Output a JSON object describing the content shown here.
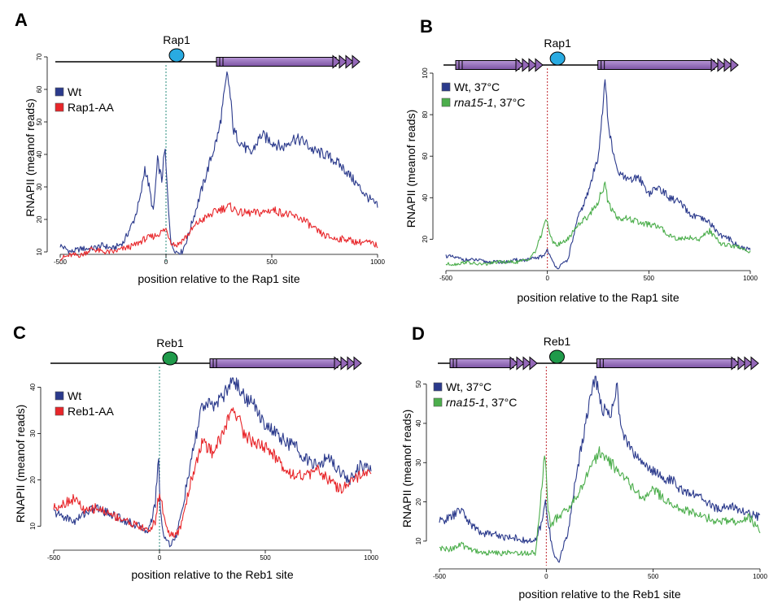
{
  "colors": {
    "wt": "#2b3a8c",
    "mutant_red": "#e8262a",
    "mutant_green": "#4cae4c",
    "gene_fill": "#9468b8",
    "rap1_circle": "#29abe2",
    "reb1_circle": "#1f9a4a",
    "vline_teal": "#2a8c7c",
    "vline_red": "#c0262d"
  },
  "chart_data": [
    {
      "panel": "A",
      "type": "line",
      "factor": "Rap1",
      "factor_color": "rap1_circle",
      "vline_color": "vline_teal",
      "genes": "right",
      "xlabel": "position relative to the Rap1 site",
      "ylabel": "RNAPII (meanof reads)",
      "xlim": [
        -500,
        1000
      ],
      "xticks": [
        "-500",
        "0",
        "500",
        "1000"
      ],
      "ylim": [
        8,
        70
      ],
      "yticks": [
        "10",
        "20",
        "30",
        "40",
        "50",
        "60",
        "70"
      ],
      "series": [
        {
          "name": "Wt",
          "color": "wt",
          "x": [
            -500,
            -450,
            -400,
            -350,
            -300,
            -250,
            -200,
            -150,
            -120,
            -100,
            -80,
            -60,
            -40,
            -20,
            -5,
            0,
            10,
            25,
            50,
            75,
            100,
            150,
            200,
            250,
            275,
            290,
            300,
            320,
            350,
            400,
            450,
            500,
            550,
            600,
            650,
            700,
            750,
            800,
            850,
            900,
            950,
            1000
          ],
          "y": [
            12,
            10,
            11,
            11,
            12,
            11,
            13,
            20,
            27,
            36,
            30,
            22,
            38,
            32,
            42,
            36,
            25,
            12,
            10,
            10,
            14,
            25,
            36,
            47,
            58,
            65,
            60,
            47,
            44,
            40,
            46,
            44,
            42,
            45,
            44,
            41,
            40,
            38,
            35,
            31,
            27,
            24
          ]
        },
        {
          "name": "Rap1-AA",
          "color": "mutant_red",
          "x": [
            -500,
            -450,
            -400,
            -350,
            -300,
            -250,
            -200,
            -150,
            -100,
            -50,
            0,
            25,
            50,
            100,
            150,
            200,
            250,
            300,
            350,
            400,
            450,
            500,
            550,
            600,
            650,
            700,
            750,
            800,
            850,
            900,
            950,
            1000
          ],
          "y": [
            8,
            9,
            9,
            11,
            10,
            10,
            11,
            12,
            14,
            15,
            17,
            13,
            12,
            15,
            19,
            21,
            23,
            24,
            22,
            22,
            22,
            23,
            22,
            21,
            20,
            17,
            15,
            14,
            14,
            13,
            13,
            12
          ]
        }
      ]
    },
    {
      "panel": "B",
      "type": "line",
      "factor": "Rap1",
      "factor_color": "rap1_circle",
      "vline_color": "vline_red",
      "genes": "both",
      "xlabel": "position relative to the Rap1 site",
      "ylabel": "RNAPII (meanof reads)",
      "xlim": [
        -500,
        1000
      ],
      "xticks": [
        "-500",
        "0",
        "500",
        "1000"
      ],
      "ylim": [
        8,
        100
      ],
      "yticks": [
        "20",
        "40",
        "60",
        "80",
        "100"
      ],
      "series": [
        {
          "name": "Wt, 37°C",
          "color": "wt",
          "x": [
            -500,
            -450,
            -400,
            -350,
            -300,
            -250,
            -200,
            -150,
            -100,
            -50,
            -20,
            0,
            20,
            50,
            100,
            150,
            200,
            250,
            270,
            285,
            300,
            330,
            350,
            400,
            450,
            500,
            550,
            600,
            650,
            700,
            750,
            800,
            850,
            900,
            950,
            1000
          ],
          "y": [
            12,
            11,
            10,
            10,
            9,
            9,
            9,
            10,
            10,
            11,
            12,
            15,
            10,
            6,
            10,
            30,
            42,
            60,
            80,
            97,
            75,
            58,
            52,
            48,
            50,
            42,
            45,
            40,
            38,
            32,
            30,
            28,
            22,
            20,
            16,
            15
          ]
        },
        {
          "name": "rna15-1, 37°C",
          "color": "mutant_green",
          "x": [
            -500,
            -450,
            -400,
            -350,
            -300,
            -250,
            -200,
            -150,
            -100,
            -60,
            -30,
            -10,
            0,
            20,
            50,
            100,
            150,
            200,
            250,
            270,
            285,
            300,
            350,
            400,
            450,
            500,
            550,
            600,
            650,
            700,
            750,
            800,
            850,
            900,
            950,
            1000
          ],
          "y": [
            8,
            8,
            9,
            8,
            8,
            9,
            9,
            9,
            10,
            14,
            22,
            30,
            27,
            20,
            17,
            20,
            27,
            31,
            38,
            44,
            46,
            37,
            30,
            30,
            28,
            27,
            26,
            22,
            20,
            21,
            20,
            24,
            18,
            17,
            16,
            14
          ]
        }
      ]
    },
    {
      "panel": "C",
      "type": "line",
      "factor": "Reb1",
      "factor_color": "reb1_circle",
      "vline_color": "vline_teal",
      "genes": "right",
      "xlabel": "position relative to the Reb1 site",
      "ylabel": "RNAPII (meanof reads)",
      "xlim": [
        -500,
        1000
      ],
      "xticks": [
        "-500",
        "0",
        "500",
        "1000"
      ],
      "ylim": [
        5,
        42
      ],
      "yticks": [
        "10",
        "20",
        "30",
        "40"
      ],
      "series": [
        {
          "name": "Wt",
          "color": "wt",
          "x": [
            -500,
            -450,
            -400,
            -350,
            -300,
            -250,
            -200,
            -150,
            -100,
            -50,
            -20,
            -5,
            5,
            20,
            50,
            80,
            100,
            150,
            200,
            250,
            300,
            350,
            400,
            450,
            500,
            550,
            600,
            650,
            700,
            750,
            800,
            850,
            900,
            950,
            1000
          ],
          "y": [
            13,
            12,
            11,
            13,
            14,
            13,
            12,
            11,
            10,
            9,
            15,
            25,
            13,
            8,
            6,
            8,
            12,
            24,
            36,
            36,
            38,
            42,
            38,
            36,
            32,
            30,
            28,
            27,
            24,
            23,
            25,
            22,
            20,
            23,
            22
          ]
        },
        {
          "name": "Reb1-AA",
          "color": "mutant_red",
          "x": [
            -500,
            -450,
            -400,
            -350,
            -300,
            -250,
            -200,
            -150,
            -100,
            -50,
            -20,
            -5,
            5,
            20,
            50,
            80,
            100,
            150,
            200,
            250,
            300,
            350,
            400,
            450,
            500,
            550,
            600,
            650,
            700,
            750,
            800,
            850,
            900,
            950,
            1000
          ],
          "y": [
            14,
            15,
            16,
            13,
            14,
            13,
            12,
            11,
            10,
            9,
            11,
            16,
            17,
            12,
            8,
            8,
            10,
            20,
            28,
            26,
            30,
            36,
            30,
            28,
            27,
            25,
            22,
            21,
            21,
            22,
            20,
            18,
            19,
            21,
            21
          ]
        }
      ]
    },
    {
      "panel": "D",
      "type": "line",
      "factor": "Reb1",
      "factor_color": "reb1_circle",
      "vline_color": "vline_red",
      "genes": "both",
      "xlabel": "position relative to the Reb1 site",
      "ylabel": "RNAPII (meanof reads)",
      "xlim": [
        -500,
        1000
      ],
      "xticks": [
        "-500",
        "0",
        "500",
        "1000"
      ],
      "ylim": [
        5,
        52
      ],
      "yticks": [
        "10",
        "20",
        "30",
        "40",
        "50"
      ],
      "series": [
        {
          "name": "Wt, 37°C",
          "color": "wt",
          "x": [
            -500,
            -450,
            -400,
            -350,
            -300,
            -250,
            -200,
            -150,
            -100,
            -50,
            -20,
            -5,
            10,
            30,
            60,
            100,
            150,
            200,
            230,
            260,
            300,
            330,
            350,
            400,
            450,
            500,
            550,
            600,
            650,
            700,
            750,
            800,
            850,
            900,
            950,
            1000
          ],
          "y": [
            15,
            16,
            18,
            14,
            12,
            12,
            11,
            11,
            10,
            10,
            15,
            20,
            15,
            7,
            5,
            12,
            30,
            45,
            52,
            44,
            42,
            50,
            38,
            33,
            30,
            28,
            26,
            25,
            22,
            22,
            20,
            18,
            19,
            18,
            17,
            16
          ]
        },
        {
          "name": "rna15-1, 37°C",
          "color": "mutant_green",
          "x": [
            -500,
            -450,
            -400,
            -350,
            -300,
            -250,
            -200,
            -150,
            -100,
            -50,
            -20,
            -5,
            5,
            20,
            50,
            100,
            150,
            200,
            250,
            300,
            350,
            400,
            450,
            500,
            550,
            600,
            650,
            700,
            750,
            800,
            850,
            900,
            950,
            1000
          ],
          "y": [
            8,
            8,
            9,
            8,
            7,
            7,
            7,
            7,
            7,
            7,
            25,
            33,
            20,
            14,
            16,
            18,
            22,
            28,
            33,
            30,
            27,
            24,
            21,
            23,
            21,
            19,
            18,
            17,
            16,
            15,
            15,
            15,
            16,
            13
          ]
        }
      ]
    }
  ]
}
